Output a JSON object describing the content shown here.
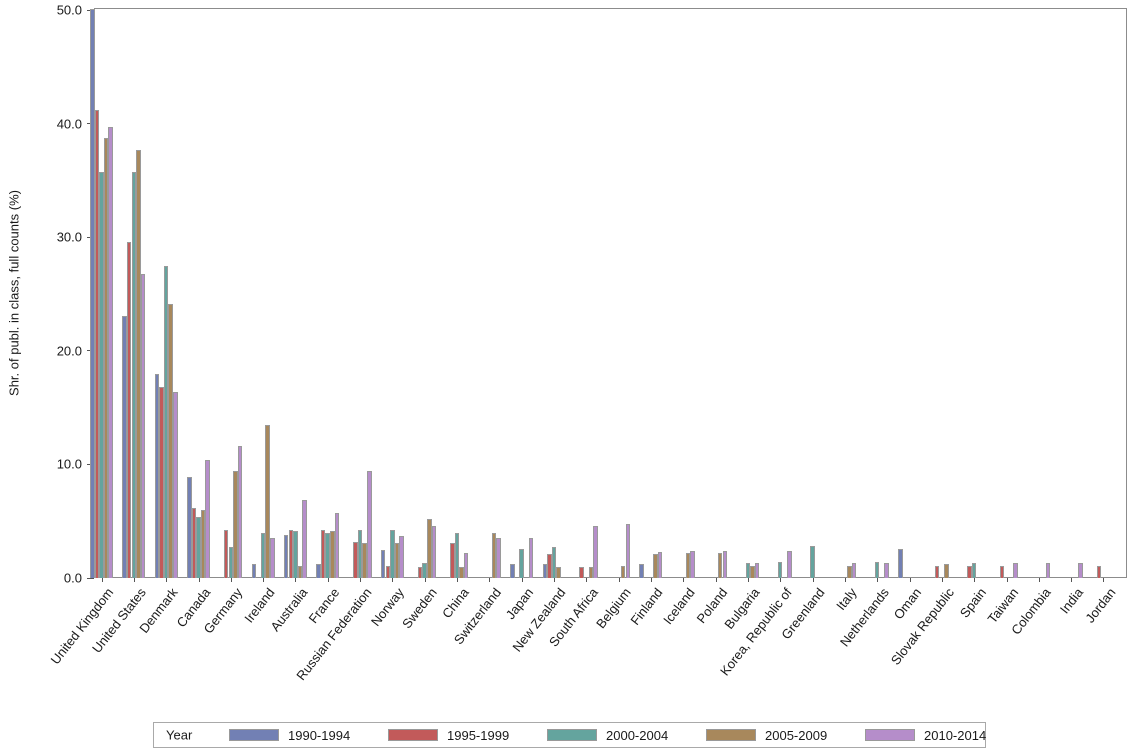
{
  "chart_data": {
    "type": "bar",
    "title": "",
    "ylabel": "Shr. of publ. in class, full counts (%)",
    "xlabel": "",
    "ylim": [
      0,
      50
    ],
    "yticks": [
      0,
      10,
      20,
      30,
      40,
      50
    ],
    "ytick_labels": [
      "0.0",
      "10.0",
      "20.0",
      "30.0",
      "40.0",
      "50.0"
    ],
    "minor_tick_step": 2,
    "grid": false,
    "legend_title": "Year",
    "legend_position": "bottom",
    "categories": [
      "United Kingdom",
      "United States",
      "Denmark",
      "Canada",
      "Germany",
      "Ireland",
      "Australia",
      "France",
      "Russian Federation",
      "Norway",
      "Sweden",
      "China",
      "Switzerland",
      "Japan",
      "New Zealand",
      "South Africa",
      "Belgium",
      "Finland",
      "Iceland",
      "Poland",
      "Bulgaria",
      "Korea, Republic of",
      "Greenland",
      "Italy",
      "Netherlands",
      "Oman",
      "Slovak Republic",
      "Spain",
      "Taiwan",
      "Colombia",
      "India",
      "Jordan"
    ],
    "series": [
      {
        "name": "1990-1994",
        "color": "#7280b4",
        "values": [
          50.2,
          23.1,
          18.0,
          8.9,
          0,
          1.2,
          3.8,
          1.2,
          0,
          2.5,
          0,
          0,
          0,
          1.2,
          1.2,
          0,
          0,
          1.2,
          0,
          0,
          0,
          0,
          0,
          0,
          0,
          2.6,
          0,
          0,
          0,
          0,
          0,
          0
        ]
      },
      {
        "name": "1995-1999",
        "color": "#c25a5a",
        "values": [
          41.2,
          29.6,
          16.8,
          6.2,
          4.2,
          0,
          4.2,
          4.2,
          3.2,
          1.1,
          1.0,
          3.1,
          0,
          0,
          2.1,
          1.0,
          0,
          0,
          0,
          0,
          0,
          0,
          0,
          0,
          0,
          0,
          1.1,
          1.1,
          1.1,
          0,
          0,
          1.1
        ]
      },
      {
        "name": "2000-2004",
        "color": "#64a49e",
        "values": [
          35.7,
          35.7,
          27.5,
          5.4,
          2.7,
          4.0,
          4.1,
          4.0,
          4.2,
          4.2,
          1.3,
          4.0,
          0,
          2.6,
          2.7,
          0,
          0,
          0,
          0,
          0,
          1.3,
          1.4,
          2.8,
          0,
          1.4,
          0,
          0,
          1.3,
          0,
          0,
          0,
          0
        ]
      },
      {
        "name": "2005-2009",
        "color": "#a8885c",
        "values": [
          38.7,
          37.7,
          24.1,
          6.0,
          9.4,
          13.5,
          1.1,
          4.1,
          3.1,
          3.1,
          5.2,
          1.0,
          4.0,
          0,
          1.0,
          1.0,
          1.1,
          2.1,
          2.2,
          2.2,
          1.1,
          0,
          0,
          1.1,
          0,
          0,
          1.2,
          0,
          0,
          0,
          0,
          0
        ]
      },
      {
        "name": "2010-2014",
        "color": "#b58dca",
        "values": [
          39.7,
          26.8,
          16.4,
          10.4,
          11.6,
          3.5,
          6.9,
          5.7,
          9.4,
          3.7,
          4.6,
          2.2,
          3.5,
          3.5,
          0,
          4.6,
          4.8,
          2.3,
          2.4,
          2.4,
          1.3,
          2.4,
          0,
          1.3,
          1.3,
          0,
          0,
          0,
          1.3,
          1.3,
          1.3,
          0
        ]
      }
    ]
  },
  "colors": {
    "background": "#ffffff",
    "frame": "#8c8c8c",
    "axis": "#555555",
    "bar_border": "#9a9a9a",
    "text": "#1a1a1a",
    "legend_border": "#a9a9a9"
  }
}
